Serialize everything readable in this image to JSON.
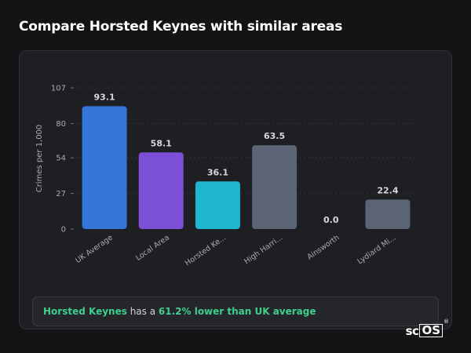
{
  "page": {
    "title": "Compare Horsted Keynes with similar areas"
  },
  "colors": {
    "background": "#141416",
    "card": "#1e1f22",
    "highlight": "#3ecf8e",
    "uk": "#3575d8",
    "local": "#7b4fd6",
    "target": "#21b6cf",
    "other": "#5b6475"
  },
  "chart_data": {
    "type": "bar",
    "title": "",
    "xlabel": "",
    "ylabel": "Crimes per 1,000",
    "ylim": [
      0,
      107
    ],
    "yticks": [
      0,
      27,
      54,
      80,
      107
    ],
    "grid": true,
    "categories": [
      "UK Average",
      "Local Area",
      "Horsted Ke...",
      "High Harri...",
      "Ainsworth",
      "Lydiard Mi..."
    ],
    "values": [
      93.1,
      58.1,
      36.1,
      63.5,
      0.0,
      22.4
    ],
    "value_labels": [
      "93.1",
      "58.1",
      "36.1",
      "63.5",
      "0.0",
      "22.4"
    ],
    "bar_colors": [
      "#3575d8",
      "#7b4fd6",
      "#21b6cf",
      "#5b6475",
      "#5b6475",
      "#5b6475"
    ]
  },
  "summary": {
    "area": "Horsted Keynes",
    "middle": " has a ",
    "comparison": "61.2% lower than UK average"
  },
  "logo": {
    "part1": "sc",
    "part2": "OS",
    "mark": "®"
  }
}
